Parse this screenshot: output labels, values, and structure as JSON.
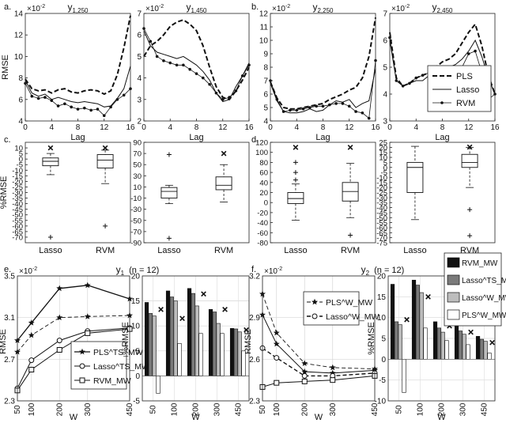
{
  "figure": {
    "panel_letters": [
      "a.",
      "b.",
      "c.",
      "d.",
      "e.",
      "f."
    ],
    "scale_label": "×10",
    "scale_exp": "-2",
    "lag_label": "Lag",
    "w_label": "W",
    "rmse_label": "RMSE",
    "pct_rmse_label": "%RMSE"
  },
  "chart_data": [
    {
      "id": "a1",
      "type": "line",
      "title_main": "y",
      "title_sub": "1,250",
      "xlabel": "Lag",
      "ylabel": "RMSE",
      "xlim": [
        0,
        16
      ],
      "ylim": [
        4,
        14
      ],
      "xticks": [
        "0",
        "4",
        "8",
        "12",
        "16"
      ],
      "yticks": [
        "4",
        "6",
        "8",
        "10",
        "12",
        "14"
      ],
      "x": [
        0,
        1,
        2,
        3,
        4,
        5,
        6,
        7,
        8,
        9,
        10,
        11,
        12,
        13,
        14,
        15,
        16
      ],
      "series": [
        {
          "name": "PLS",
          "values": [
            7.9,
            7.0,
            6.8,
            6.9,
            6.6,
            6.9,
            7.0,
            6.7,
            6.6,
            6.8,
            6.9,
            6.8,
            6.5,
            6.8,
            8.3,
            10.8,
            13.8
          ]
        },
        {
          "name": "Lasso",
          "values": [
            7.8,
            6.6,
            6.3,
            6.5,
            6.0,
            6.2,
            6.0,
            5.8,
            5.7,
            5.8,
            5.7,
            5.6,
            5.3,
            5.4,
            6.1,
            7.0,
            9.1
          ]
        },
        {
          "name": "RVM",
          "values": [
            7.5,
            6.3,
            6.1,
            6.2,
            5.9,
            5.4,
            5.6,
            5.3,
            5.1,
            5.2,
            5.0,
            5.1,
            4.5,
            5.3,
            6.0,
            6.4,
            7.0
          ]
        }
      ]
    },
    {
      "id": "a2",
      "type": "line",
      "title_main": "y",
      "title_sub": "1,450",
      "xlabel": "Lag",
      "xlim": [
        0,
        16
      ],
      "ylim": [
        2,
        7
      ],
      "xticks": [
        "0",
        "4",
        "8",
        "12",
        "16"
      ],
      "yticks": [
        "2",
        "3",
        "4",
        "5",
        "6",
        "7"
      ],
      "x": [
        0,
        1,
        2,
        3,
        4,
        5,
        6,
        7,
        8,
        9,
        10,
        11,
        12,
        13,
        14,
        15,
        16
      ],
      "series": [
        {
          "name": "PLS",
          "values": [
            5.0,
            5.5,
            5.7,
            6.0,
            6.4,
            6.6,
            6.7,
            6.5,
            6.2,
            5.5,
            4.5,
            3.6,
            3.1,
            3.0,
            3.4,
            3.9,
            4.5
          ]
        },
        {
          "name": "Lasso",
          "values": [
            6.2,
            5.5,
            5.2,
            5.1,
            5.0,
            4.9,
            5.0,
            4.8,
            4.6,
            4.3,
            3.9,
            3.3,
            2.9,
            3.0,
            3.6,
            4.1,
            4.7
          ]
        },
        {
          "name": "RVM",
          "values": [
            6.3,
            5.7,
            5.0,
            4.8,
            4.7,
            4.6,
            4.6,
            4.4,
            4.2,
            4.0,
            3.7,
            3.3,
            3.0,
            3.1,
            3.4,
            4.1,
            4.6
          ]
        }
      ]
    },
    {
      "id": "b1",
      "type": "line",
      "title_main": "y",
      "title_sub": "2,250",
      "xlabel": "Lag",
      "xlim": [
        0,
        16
      ],
      "ylim": [
        4,
        12
      ],
      "xticks": [
        "0",
        "4",
        "8",
        "12",
        "16"
      ],
      "yticks": [
        "4",
        "5",
        "6",
        "7",
        "8",
        "9",
        "10",
        "11",
        "12"
      ],
      "x": [
        0,
        1,
        2,
        3,
        4,
        5,
        6,
        7,
        8,
        9,
        10,
        11,
        12,
        13,
        14,
        15,
        16
      ],
      "series": [
        {
          "name": "PLS",
          "values": [
            6.9,
            5.7,
            5.0,
            4.9,
            4.9,
            5.0,
            5.1,
            5.2,
            5.3,
            5.6,
            5.8,
            6.0,
            6.3,
            6.5,
            7.2,
            8.8,
            11.7
          ]
        },
        {
          "name": "Lasso",
          "values": [
            6.8,
            5.5,
            4.7,
            4.6,
            4.6,
            4.7,
            4.9,
            4.7,
            4.8,
            5.2,
            5.5,
            5.4,
            5.6,
            5.0,
            5.3,
            5.5,
            7.9
          ]
        },
        {
          "name": "RVM",
          "values": [
            7.0,
            5.6,
            4.7,
            4.8,
            4.8,
            4.9,
            5.0,
            5.1,
            5.1,
            5.2,
            5.3,
            5.3,
            5.1,
            4.7,
            4.6,
            4.2,
            8.5
          ]
        }
      ]
    },
    {
      "id": "b2",
      "type": "line",
      "title_main": "y",
      "title_sub": "2,450",
      "xlabel": "Lag",
      "xlim": [
        0,
        16
      ],
      "ylim": [
        3,
        7
      ],
      "xticks": [
        "0",
        "4",
        "8",
        "12",
        "16"
      ],
      "yticks": [
        "3",
        "4",
        "5",
        "6",
        "7"
      ],
      "x": [
        0,
        1,
        2,
        3,
        4,
        5,
        6,
        7,
        8,
        9,
        10,
        11,
        12,
        13,
        14,
        15,
        16
      ],
      "series": [
        {
          "name": "PLS",
          "values": [
            6.3,
            4.6,
            4.3,
            4.4,
            4.6,
            4.7,
            4.8,
            5.0,
            5.2,
            5.3,
            5.5,
            5.9,
            6.3,
            6.6,
            5.8,
            4.7,
            4.0
          ]
        },
        {
          "name": "Lasso",
          "values": [
            6.0,
            4.5,
            4.3,
            4.4,
            4.5,
            4.5,
            4.7,
            4.9,
            5.0,
            5.0,
            5.1,
            5.3,
            5.6,
            6.0,
            5.4,
            4.6,
            4.0
          ]
        },
        {
          "name": "RVM",
          "values": [
            6.1,
            4.5,
            4.3,
            4.4,
            4.6,
            4.7,
            4.8,
            4.9,
            4.8,
            4.8,
            4.9,
            5.0,
            5.5,
            5.6,
            4.8,
            3.8,
            4.0
          ]
        }
      ],
      "legend": [
        "PLS",
        "Lasso",
        "RVM"
      ]
    },
    {
      "id": "c1",
      "type": "box",
      "ylabel": "%RMSE",
      "ylim": [
        -75,
        15
      ],
      "yticks": [
        "-70",
        "-65",
        "-60",
        "-55",
        "-50",
        "-45",
        "-40",
        "-35",
        "-30",
        "-25",
        "-20",
        "-15",
        "-10",
        "-5",
        "0",
        "5",
        "10"
      ],
      "yticks_values": [
        -70,
        -65,
        -60,
        -55,
        -50,
        -45,
        -40,
        -35,
        -30,
        -25,
        -20,
        -15,
        -10,
        -5,
        0,
        5,
        10
      ],
      "categories": [
        "Lasso",
        "RVM"
      ],
      "boxes": [
        {
          "wlo": -14,
          "q1": -6,
          "median": -2,
          "q3": 1,
          "whi": 5,
          "outliers": [
            -70
          ],
          "extreme": [
            10
          ]
        },
        {
          "wlo": -22,
          "q1": -8,
          "median": -1,
          "q3": 4,
          "whi": 8,
          "outliers": [
            -60
          ],
          "extreme": [
            10
          ]
        }
      ]
    },
    {
      "id": "c2",
      "type": "box",
      "ylim": [
        -90,
        90
      ],
      "yticks": [
        "-90",
        "-70",
        "-50",
        "-30",
        "-10",
        "10",
        "30",
        "50",
        "70",
        "90"
      ],
      "yticks_values": [
        -90,
        -70,
        -50,
        -30,
        -10,
        10,
        30,
        50,
        70,
        90
      ],
      "categories": [
        "Lasso",
        "RVM"
      ],
      "boxes": [
        {
          "wlo": -20,
          "q1": -10,
          "median": 2,
          "q3": 9,
          "whi": 13,
          "outliers": [
            68,
            -82
          ],
          "extreme": []
        },
        {
          "wlo": -17,
          "q1": 5,
          "median": 13,
          "q3": 28,
          "whi": 50,
          "outliers": [],
          "extreme": [
            70
          ]
        }
      ]
    },
    {
      "id": "d1",
      "type": "box",
      "ylim": [
        -80,
        120
      ],
      "yticks": [
        "-80",
        "-60",
        "-40",
        "-20",
        "0",
        "20",
        "40",
        "60",
        "80",
        "100",
        "120"
      ],
      "yticks_values": [
        -80,
        -60,
        -40,
        -20,
        0,
        20,
        40,
        60,
        80,
        100,
        120
      ],
      "categories": [
        "Lasso",
        "RVM"
      ],
      "boxes": [
        {
          "wlo": -35,
          "q1": -2,
          "median": 8,
          "q3": 20,
          "whi": 37,
          "outliers": [
            45,
            60,
            80
          ],
          "extreme": [
            110
          ]
        },
        {
          "wlo": -30,
          "q1": 3,
          "median": 22,
          "q3": 40,
          "whi": 78,
          "outliers": [
            -65
          ],
          "extreme": [
            110
          ]
        }
      ]
    },
    {
      "id": "d2",
      "type": "box",
      "ylim": [
        -75,
        25
      ],
      "yticks": [
        "-75",
        "-70",
        "-65",
        "-60",
        "-55",
        "-50",
        "-45",
        "-40",
        "-35",
        "-30",
        "-25",
        "-20",
        "-15",
        "-10",
        "-5",
        "0",
        "5",
        "10",
        "15",
        "20",
        "25"
      ],
      "yticks_values": [
        -75,
        -70,
        -65,
        -60,
        -55,
        -50,
        -45,
        -40,
        -35,
        -30,
        -25,
        -20,
        -15,
        -10,
        -5,
        0,
        5,
        10,
        15,
        20,
        25
      ],
      "categories": [
        "Lasso",
        "RVM"
      ],
      "boxes": [
        {
          "wlo": -52,
          "q1": -25,
          "median": 0,
          "q3": 5,
          "whi": 21,
          "outliers": [],
          "extreme": []
        },
        {
          "wlo": -20,
          "q1": 0,
          "median": 5,
          "q3": 13,
          "whi": 20,
          "outliers": [
            -42,
            -68
          ],
          "extreme": [
            40
          ]
        }
      ]
    },
    {
      "id": "e1",
      "type": "line",
      "title_main": "y",
      "title_sub": "1",
      "title_suffix": "(n = 12)",
      "xlabel": "W",
      "ylabel": "RMSE",
      "xlim": [
        50,
        450
      ],
      "ylim": [
        2.3,
        3.5
      ],
      "xticks": [
        "50",
        "100",
        "200",
        "300",
        "450"
      ],
      "yticks": [
        "2.3",
        "2.7",
        "3.1",
        "3.5"
      ],
      "x": [
        50,
        100,
        200,
        300,
        450
      ],
      "series": [
        {
          "name": "PLS_TS_MW",
          "values": [
            2.88,
            3.05,
            3.38,
            3.41,
            3.28
          ]
        },
        {
          "name": "PLS_MW",
          "values": [
            2.77,
            2.93,
            3.1,
            3.11,
            3.12
          ]
        },
        {
          "name": "Lasso_TS_MW",
          "values": [
            2.42,
            2.69,
            2.88,
            2.97,
            3.0
          ]
        },
        {
          "name": "RVM_MW",
          "values": [
            2.4,
            2.6,
            2.79,
            2.95,
            2.99
          ]
        }
      ],
      "legend": [
        "PLS^TS_MW",
        "Lasso^TS_MW",
        "RVM_MW"
      ]
    },
    {
      "id": "e2",
      "type": "bar",
      "ylabel": "%RMSE",
      "ylim": [
        -5,
        20
      ],
      "yticks": [
        "-5",
        "0",
        "5",
        "10",
        "15",
        "20"
      ],
      "categories": [
        "50",
        "100",
        "200",
        "300",
        "450"
      ],
      "series": [
        {
          "name": "RVM_MW",
          "values": [
            14.7,
            17.0,
            17.5,
            13.3,
            9.5
          ]
        },
        {
          "name": "Lasso^TS_MW",
          "values": [
            12.5,
            15.8,
            16.5,
            12.8,
            9.4
          ]
        },
        {
          "name": "Lasso^TS_MW grey",
          "values": [
            12.0,
            15.0,
            14.0,
            10.5,
            8.8
          ]
        },
        {
          "name": "PLS^TS_MW",
          "values": [
            -3.5,
            6.5,
            8.5,
            8.5,
            5.0
          ]
        }
      ],
      "markers": [
        13.3,
        11.5,
        16.4,
        13.3,
        9.2
      ]
    },
    {
      "id": "f1",
      "type": "line",
      "title_main": "y",
      "title_sub": "2",
      "title_suffix": "(n = 12)",
      "xlabel": "W",
      "ylabel": "RMSE",
      "xlim": [
        50,
        450
      ],
      "ylim": [
        2.3,
        3.2
      ],
      "xticks": [
        "50",
        "100",
        "200",
        "300",
        "450"
      ],
      "yticks": [
        "2.3",
        "2.6",
        "2.9",
        "3.2"
      ],
      "x": [
        50,
        100,
        200,
        300,
        450
      ],
      "series": [
        {
          "name": "PLS^W_MW",
          "values": [
            3.07,
            2.79,
            2.57,
            2.54,
            2.53
          ]
        },
        {
          "name": "PLS_MW",
          "values": [
            2.92,
            2.71,
            2.51,
            2.5,
            2.52
          ]
        },
        {
          "name": "Lasso^W_MW",
          "values": [
            2.68,
            2.61,
            2.48,
            2.48,
            2.5
          ]
        },
        {
          "name": "RVM_MW",
          "values": [
            2.4,
            2.43,
            2.44,
            2.45,
            2.48
          ]
        }
      ],
      "legend": [
        "PLS^W_MW",
        "Lasso^W_MW"
      ]
    },
    {
      "id": "f2",
      "type": "bar",
      "ylabel": "%RMSE",
      "ylim": [
        -10,
        20
      ],
      "yticks": [
        "-10",
        "-5",
        "0",
        "5",
        "10",
        "15",
        "20"
      ],
      "categories": [
        "50",
        "100",
        "200",
        "300",
        "450"
      ],
      "series": [
        {
          "name": "RVM_MW",
          "values": [
            18.0,
            19.0,
            9.0,
            8.0,
            5.5
          ]
        },
        {
          "name": "Lasso^TS_MW",
          "values": [
            9.0,
            17.8,
            7.5,
            6.8,
            4.8
          ]
        },
        {
          "name": "Lasso^W_MW",
          "values": [
            8.3,
            16.0,
            6.5,
            6.0,
            4.3
          ]
        },
        {
          "name": "PLS^W_MW",
          "values": [
            -8.0,
            7.5,
            4.5,
            3.5,
            1.5
          ]
        }
      ],
      "markers": [
        9.5,
        15.0,
        8.0,
        6.5,
        4.0
      ],
      "legend": [
        "RVM_MW",
        "Lasso^TS_MW",
        "Lasso^W_MW",
        "PLS^W_MW"
      ]
    }
  ]
}
